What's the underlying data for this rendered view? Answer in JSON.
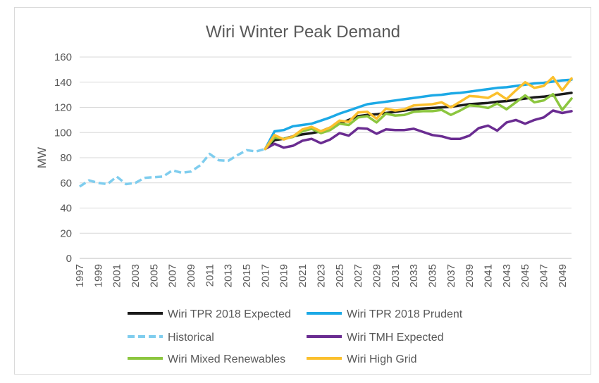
{
  "chart_data": {
    "type": "line",
    "title": "Wiri Winter Peak Demand",
    "ylabel": "MW",
    "xlabel": "",
    "ylim": [
      0,
      160
    ],
    "yticks": [
      0,
      20,
      40,
      60,
      80,
      100,
      120,
      140,
      160
    ],
    "xlim": [
      1997,
      2050
    ],
    "xticks": [
      1997,
      1999,
      2001,
      2003,
      2005,
      2007,
      2009,
      2011,
      2013,
      2015,
      2017,
      2019,
      2021,
      2023,
      2025,
      2027,
      2029,
      2031,
      2033,
      2035,
      2037,
      2039,
      2041,
      2043,
      2045,
      2047,
      2049
    ],
    "grid": "horizontal",
    "legend_position": "bottom",
    "series": [
      {
        "name": "Wiri TPR 2018 Expected",
        "color": "#1a1a1a",
        "dash": false,
        "x": [
          2017,
          2018,
          2019,
          2020,
          2021,
          2022,
          2023,
          2024,
          2025,
          2026,
          2027,
          2028,
          2029,
          2030,
          2031,
          2032,
          2033,
          2034,
          2035,
          2036,
          2037,
          2038,
          2039,
          2040,
          2041,
          2042,
          2043,
          2044,
          2045,
          2046,
          2047,
          2048,
          2049,
          2050
        ],
        "y": [
          87,
          94,
          95,
          97,
          98.5,
          99.5,
          101,
          104,
          107,
          110,
          113,
          114,
          114.5,
          115.5,
          116.5,
          117.5,
          118.5,
          119,
          119.5,
          120,
          120.5,
          121.5,
          122.5,
          123,
          123.5,
          124.5,
          125,
          126,
          127,
          128,
          128.5,
          129.5,
          130.5,
          131.5
        ]
      },
      {
        "name": "Wiri TPR 2018 Prudent",
        "color": "#1ca9e6",
        "dash": false,
        "x": [
          2017,
          2018,
          2019,
          2020,
          2021,
          2022,
          2023,
          2024,
          2025,
          2026,
          2027,
          2028,
          2029,
          2030,
          2031,
          2032,
          2033,
          2034,
          2035,
          2036,
          2037,
          2038,
          2039,
          2040,
          2041,
          2042,
          2043,
          2044,
          2045,
          2046,
          2047,
          2048,
          2049,
          2050
        ],
        "y": [
          87,
          101,
          102,
          105,
          106,
          107,
          109.5,
          112,
          115,
          117.5,
          120,
          122.5,
          123.5,
          124.5,
          125.5,
          126.5,
          127.5,
          128.5,
          129.5,
          130,
          131,
          131.5,
          132.5,
          133.5,
          134.5,
          135.5,
          136,
          137,
          138,
          139,
          139.5,
          140.5,
          141.5,
          142
        ]
      },
      {
        "name": "Historical",
        "color": "#7fcdee",
        "dash": true,
        "x": [
          1997,
          1998,
          1999,
          2000,
          2001,
          2002,
          2003,
          2004,
          2005,
          2006,
          2007,
          2008,
          2009,
          2010,
          2011,
          2012,
          2013,
          2014,
          2015,
          2016,
          2017
        ],
        "y": [
          57,
          62,
          60,
          59,
          65,
          59,
          60,
          64,
          64.5,
          65,
          70,
          68,
          69,
          74,
          83,
          78,
          77.5,
          82,
          86,
          85,
          87
        ]
      },
      {
        "name": "Wiri TMH Expected",
        "color": "#6a2c91",
        "dash": false,
        "x": [
          2017,
          2018,
          2019,
          2020,
          2021,
          2022,
          2023,
          2024,
          2025,
          2026,
          2027,
          2028,
          2029,
          2030,
          2031,
          2032,
          2033,
          2034,
          2035,
          2036,
          2037,
          2038,
          2039,
          2040,
          2041,
          2042,
          2043,
          2044,
          2045,
          2046,
          2047,
          2048,
          2049,
          2050
        ],
        "y": [
          87,
          91,
          88,
          89.5,
          93.5,
          95,
          91.5,
          94.5,
          99.5,
          97.5,
          103.5,
          103,
          99,
          102.5,
          102,
          102,
          103,
          100.5,
          98,
          97,
          95,
          95,
          97.5,
          103.5,
          105.5,
          101.5,
          108,
          110,
          107,
          110,
          112,
          117.5,
          115.5,
          117
        ]
      },
      {
        "name": "Wiri Mixed Renewables",
        "color": "#8cc63f",
        "dash": false,
        "x": [
          2017,
          2018,
          2019,
          2020,
          2021,
          2022,
          2023,
          2024,
          2025,
          2026,
          2027,
          2028,
          2029,
          2030,
          2031,
          2032,
          2033,
          2034,
          2035,
          2036,
          2037,
          2038,
          2039,
          2040,
          2041,
          2042,
          2043,
          2044,
          2045,
          2046,
          2047,
          2048,
          2049,
          2050
        ],
        "y": [
          87,
          96,
          95,
          96.5,
          101,
          103,
          99.5,
          102,
          107,
          106,
          112,
          113,
          108,
          115,
          113.5,
          114,
          116.5,
          117,
          117,
          118,
          114,
          117.5,
          121.5,
          121,
          119.5,
          123,
          118.5,
          124,
          129.5,
          124,
          125.5,
          130.5,
          118,
          127
        ]
      },
      {
        "name": "Wiri High Grid",
        "color": "#fbc02d",
        "dash": false,
        "x": [
          2017,
          2018,
          2019,
          2020,
          2021,
          2022,
          2023,
          2024,
          2025,
          2026,
          2027,
          2028,
          2029,
          2030,
          2031,
          2032,
          2033,
          2034,
          2035,
          2036,
          2037,
          2038,
          2039,
          2040,
          2041,
          2042,
          2043,
          2044,
          2045,
          2046,
          2047,
          2048,
          2049,
          2050
        ],
        "y": [
          87,
          98,
          94.5,
          97,
          102.5,
          104.5,
          101,
          104,
          109.5,
          108.5,
          116,
          116.5,
          111,
          119,
          117.5,
          118.5,
          121.5,
          122,
          122.5,
          124,
          120,
          124.5,
          129,
          128.5,
          127.5,
          131.5,
          126.5,
          133.5,
          140,
          135.5,
          137,
          144,
          133.5,
          143
        ]
      }
    ]
  }
}
